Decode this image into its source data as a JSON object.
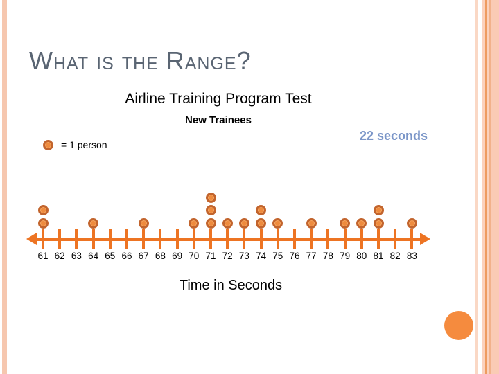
{
  "slide": {
    "title": "What is the Range?"
  },
  "chart": {
    "title": "Airline Training Program Test",
    "subtitle": "New Trainees",
    "annotation": "22 seconds",
    "legend_label": "= 1 person",
    "xlabel": "Time in Seconds"
  },
  "chart_data": {
    "type": "bar",
    "style": "dot-plot (stacked dots, each dot = 1 person)",
    "title": "Airline Training Program Test",
    "subtitle": "New Trainees",
    "categories": [
      61,
      62,
      63,
      64,
      65,
      66,
      67,
      68,
      69,
      70,
      71,
      72,
      73,
      74,
      75,
      76,
      77,
      78,
      79,
      80,
      81,
      82,
      83
    ],
    "values": [
      2,
      0,
      0,
      1,
      0,
      0,
      1,
      0,
      0,
      1,
      3,
      1,
      1,
      2,
      1,
      0,
      1,
      0,
      1,
      1,
      2,
      0,
      1
    ],
    "xlabel": "Time in Seconds",
    "xlim": [
      61,
      83
    ],
    "axis_style": "double-arrow number line with tick marks",
    "annotation": "22 seconds",
    "legend": "= 1 person",
    "range_answer_seconds": 22
  },
  "colors": {
    "axis_orange": "#ED7423",
    "dot_fill": "#EE8B3E",
    "dot_border": "#C2642D",
    "answer_blue": "#7B96C8",
    "title_gray": "#5A6573",
    "stripe_peach": "#F6C7AF",
    "deco_circle_orange": "#F58B3E"
  }
}
